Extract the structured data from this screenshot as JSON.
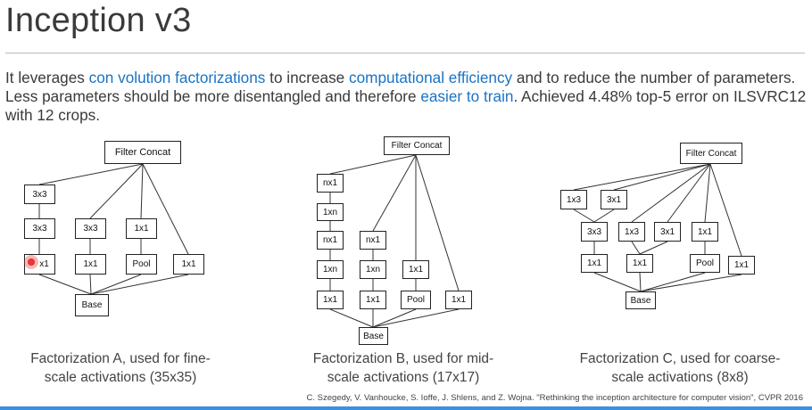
{
  "slide": {
    "title": "Inception v3",
    "paragraph": {
      "p1": "It leverages ",
      "h1": "con volution factorizations",
      "p2": " to increase ",
      "h2": "computational efficiency",
      "p3": " and to reduce the number of parameters. Less parameters should be more disentangled and therefore ",
      "h3": "easier to train",
      "p4": ". Achieved 4.48% top-5 error on ILSVRC12 with 12 crops."
    },
    "highlight_color": "#1a73c4",
    "citation": "C. Szegedy, V. Vanhoucke, S. Ioffe, J. Shlens, and Z. Wojna. \"Rethinking the inception architecture for computer vision\", CVPR 2016"
  },
  "diagrams": {
    "a": {
      "caption_line1": "Factorization A, used for fine-",
      "caption_line2": "scale activations (35x35)",
      "filter_concat": "Filter Concat",
      "base": "Base",
      "col1": [
        "3x3",
        "3x3",
        "x1"
      ],
      "col2": [
        "3x3",
        "1x1"
      ],
      "col3": [
        "1x1",
        "Pool"
      ],
      "col4": [
        "1x1"
      ]
    },
    "b": {
      "caption_line1": "Factorization B, used for mid-",
      "caption_line2": "scale activations (17x17)",
      "filter_concat": "Filter Concat",
      "base": "Base",
      "col1": [
        "nx1",
        "1xn",
        "nx1",
        "1xn",
        "1x1"
      ],
      "col2": [
        "nx1",
        "1xn",
        "1x1"
      ],
      "col3": [
        "1x1",
        "Pool"
      ],
      "col4": [
        "1x1"
      ]
    },
    "c": {
      "caption_line1": "Factorization C, used for coarse-",
      "caption_line2": "scale activations (8x8)",
      "filter_concat": "Filter Concat",
      "base": "Base",
      "top": [
        "1x3",
        "3x1"
      ],
      "mid": [
        "3x3",
        "1x3",
        "3x1",
        "1x1"
      ],
      "bottom": [
        "1x1",
        "1x1",
        "Pool",
        "1x1"
      ]
    }
  }
}
